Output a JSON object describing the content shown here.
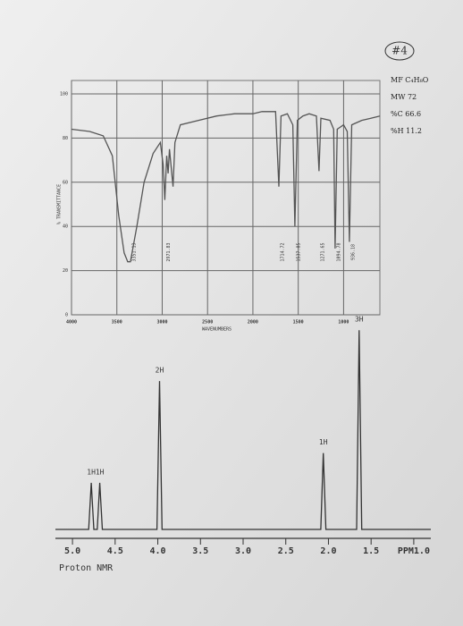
{
  "note": {
    "label": "#4",
    "lines": [
      "MF C₄H₈O",
      "MW 72",
      "%C 66.6",
      "%H 11.2"
    ]
  },
  "chart_data": [
    {
      "type": "line",
      "x_label": "WAVENUMBERS",
      "y_label": "% TRANSMITTANCE",
      "color": "#555555",
      "xlim": [
        4000,
        600
      ],
      "ylim": [
        0,
        100
      ],
      "xticks": [
        4000,
        3500,
        3000,
        2500,
        2000,
        1500,
        1000
      ],
      "yticks": [
        0,
        20,
        40,
        60,
        80,
        100
      ],
      "grid": true,
      "x": [
        4000,
        3800,
        3650,
        3550,
        3480,
        3420,
        3380,
        3351,
        3280,
        3200,
        3100,
        3020,
        2990,
        2971,
        2950,
        2935,
        2920,
        2880,
        2860,
        2800,
        2600,
        2400,
        2200,
        2000,
        1900,
        1800,
        1750,
        1714,
        1690,
        1620,
        1560,
        1537,
        1510,
        1450,
        1380,
        1300,
        1271,
        1250,
        1150,
        1110,
        1094,
        1070,
        1000,
        960,
        936,
        910,
        800,
        700,
        600
      ],
      "values": [
        84,
        83,
        81,
        72,
        45,
        28,
        24,
        24,
        40,
        60,
        73,
        78,
        68,
        52,
        72,
        64,
        75,
        58,
        78,
        86,
        88,
        90,
        91,
        91,
        92,
        92,
        92,
        58,
        90,
        91,
        86,
        40,
        88,
        90,
        91,
        90,
        65,
        89,
        88,
        84,
        30,
        84,
        86,
        83,
        33,
        86,
        88,
        89,
        90
      ],
      "annotations": [
        {
          "text": "3351.13",
          "x": 3351
        },
        {
          "text": "2971.83",
          "x": 2971
        },
        {
          "text": "1714.72",
          "x": 1714
        },
        {
          "text": "1537.85",
          "x": 1537
        },
        {
          "text": "1271.65",
          "x": 1271
        },
        {
          "text": "1094.78",
          "x": 1094
        },
        {
          "text": "936.18",
          "x": 936
        }
      ]
    },
    {
      "type": "line",
      "title": "Proton NMR",
      "color": "#333333",
      "xlim": [
        5.2,
        0.8
      ],
      "ylim": [
        0,
        100
      ],
      "xticks": [
        {
          "value": 5,
          "label": "5.0"
        },
        4.5,
        {
          "value": 4,
          "label": "4.0"
        },
        3.5,
        {
          "value": 3,
          "label": "3.0"
        },
        2.5,
        {
          "value": 2,
          "label": "2.0"
        },
        1.5,
        {
          "value": 1,
          "label": "PPM1.0"
        }
      ],
      "x": [
        5.2,
        4.81,
        4.78,
        4.75,
        4.71,
        4.68,
        4.65,
        4.01,
        3.98,
        3.95,
        2.09,
        2.06,
        2.03,
        1.67,
        1.64,
        1.61,
        0.8
      ],
      "values": [
        0,
        0,
        22,
        0,
        0,
        22,
        0,
        0,
        70,
        0,
        0,
        36,
        0,
        0,
        94,
        0,
        0
      ],
      "annotations": [
        {
          "text": "1H",
          "x": 4.78
        },
        {
          "text": "1H",
          "x": 4.68
        },
        {
          "text": "2H",
          "x": 3.98
        },
        {
          "text": "1H",
          "x": 2.06
        },
        {
          "text": "3H",
          "x": 1.64
        }
      ]
    }
  ]
}
